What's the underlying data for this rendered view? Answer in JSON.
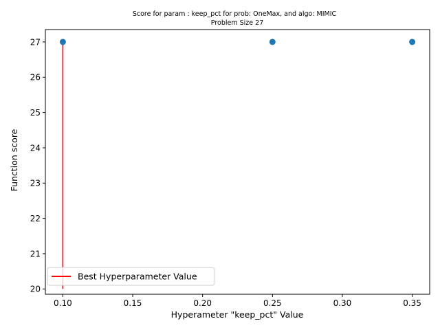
{
  "chart_data": {
    "type": "scatter",
    "title_lines": [
      "Score for param : keep_pct for prob: OneMax, and algo: MIMIC",
      "Problem Size 27"
    ],
    "xlabel": "Hyperameter \"keep_pct\" Value",
    "ylabel": "Function score",
    "xlim": [
      0.0875,
      0.3625
    ],
    "ylim": [
      19.85,
      27.35
    ],
    "xticks": [
      0.1,
      0.15,
      0.2,
      0.25,
      0.3,
      0.35
    ],
    "xtick_labels": [
      "0.10",
      "0.15",
      "0.20",
      "0.25",
      "0.30",
      "0.35"
    ],
    "yticks": [
      20,
      21,
      22,
      23,
      24,
      25,
      26,
      27
    ],
    "ytick_labels": [
      "20",
      "21",
      "22",
      "23",
      "24",
      "25",
      "26",
      "27"
    ],
    "points": [
      {
        "x": 0.1,
        "y": 27
      },
      {
        "x": 0.25,
        "y": 27
      },
      {
        "x": 0.35,
        "y": 27
      }
    ],
    "best_line": {
      "name": "Best Hyperparameter Value",
      "x": 0.1,
      "y_from": 20,
      "y_to": 27
    },
    "legend_position": "lower-left",
    "grid": false,
    "colors": {
      "points": "#1f77b4",
      "best_line": "#ff0000"
    }
  }
}
